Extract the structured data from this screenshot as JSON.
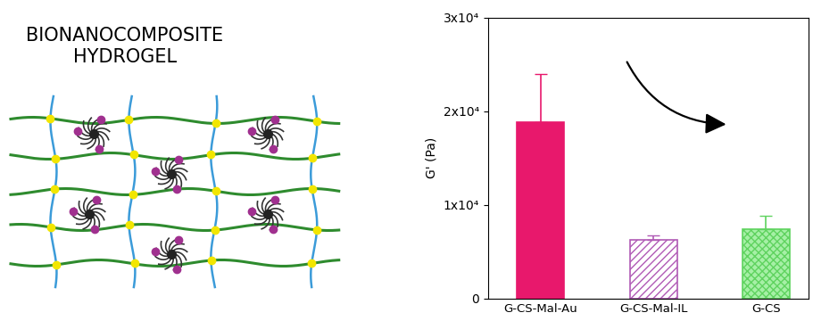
{
  "diagram": {
    "title": "BIONANOCOMPOSITE\nHYDROGEL"
  },
  "chart_data": {
    "type": "bar",
    "y_label": "G' (Pa)",
    "categories": [
      "G-CS-Mal-Au",
      "G-CS-Mal-IL",
      "G-CS"
    ],
    "values": [
      18800,
      6300,
      7400
    ],
    "errors": [
      5200,
      400,
      1400
    ],
    "colors": [
      "#e8186c",
      "#b05ab5",
      "#5fd35f"
    ],
    "ylim": [
      0,
      30000
    ],
    "yticks": [
      0,
      {
        "value": 10000,
        "label": "1x10⁴"
      },
      {
        "value": 20000,
        "label": "2x10⁴"
      },
      {
        "value": 30000,
        "label": "3x10⁴"
      }
    ],
    "grid": false
  }
}
